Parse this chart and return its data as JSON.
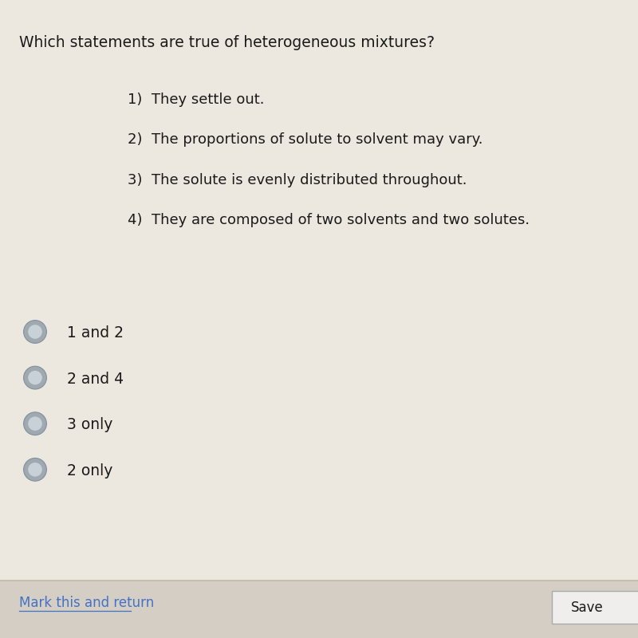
{
  "title": "Which statements are true of heterogeneous mixtures?",
  "numbered_items": [
    "1)  They settle out.",
    "2)  The proportions of solute to solvent may vary.",
    "3)  The solute is evenly distributed throughout.",
    "4)  They are composed of two solvents and two solutes."
  ],
  "answer_choices": [
    "1 and 2",
    "2 and 4",
    "3 only",
    "2 only"
  ],
  "footer_link": "Mark this and return",
  "footer_button": "Save",
  "bg_color": "#c8c4bc",
  "content_bg": "#ede8df",
  "title_color": "#1a1a1a",
  "text_color": "#1a1a1a",
  "link_color": "#4472c4",
  "radio_color": "#a0a8b0",
  "radio_inner": "#c8d0d8",
  "radio_edge": "#8090a0",
  "separator_color": "#c0b8a8",
  "footer_bg": "#d4cec4",
  "button_border": "#aaaaaa",
  "button_bg": "#f0eeec",
  "title_fontsize": 13.5,
  "item_fontsize": 13.0,
  "answer_fontsize": 13.5,
  "footer_fontsize": 12.0
}
